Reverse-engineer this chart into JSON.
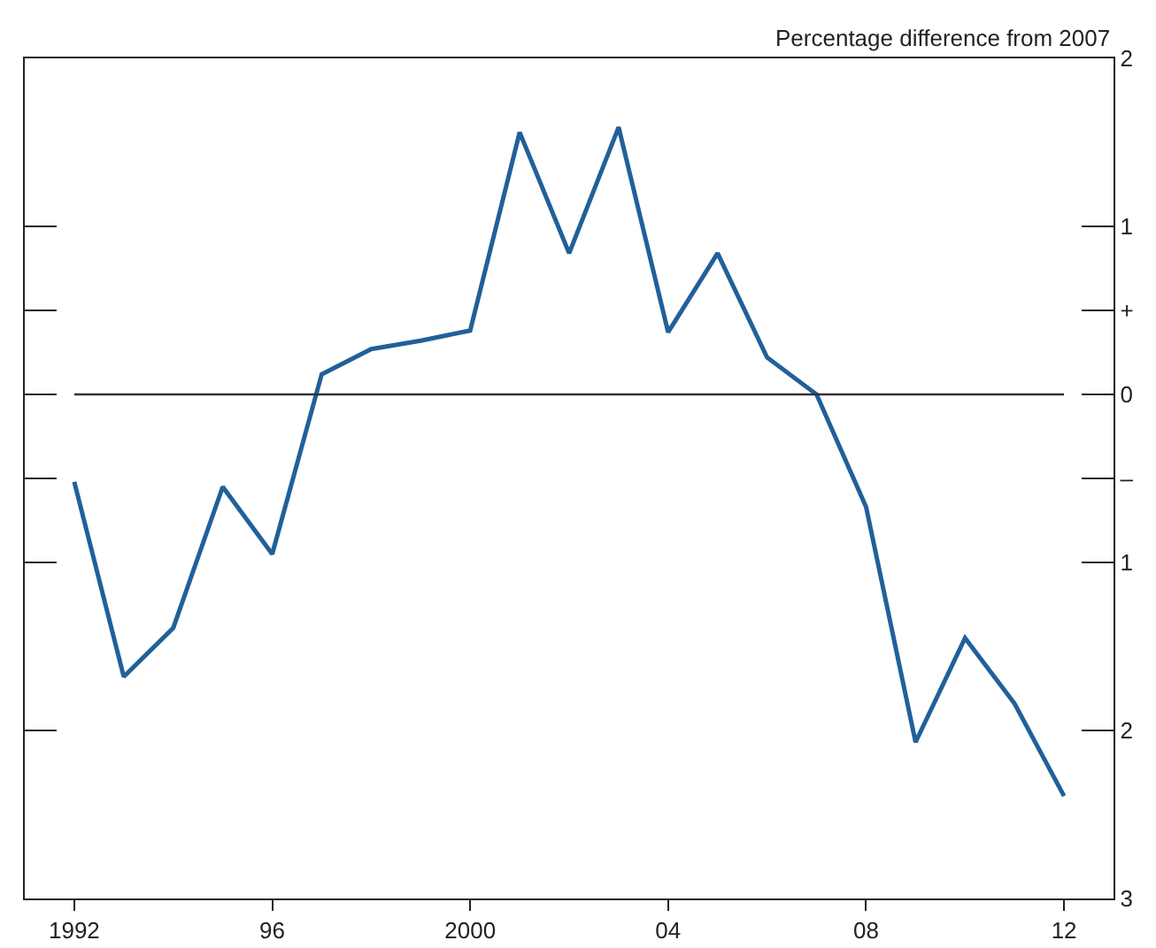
{
  "chart_data": {
    "type": "line",
    "ylabel": "Percentage difference from 2007",
    "x": [
      1992,
      1993,
      1994,
      1995,
      1996,
      1997,
      1998,
      1999,
      2000,
      2001,
      2002,
      2003,
      2004,
      2005,
      2006,
      2007,
      2008,
      2009,
      2010,
      2011,
      2012
    ],
    "series": [
      {
        "color": "#21609a",
        "values": [
          -0.52,
          -1.68,
          -1.39,
          -0.55,
          -0.95,
          0.12,
          0.27,
          0.32,
          0.38,
          1.56,
          0.84,
          1.59,
          0.37,
          0.84,
          0.22,
          0,
          -0.67,
          -2.07,
          -1.45,
          -1.84,
          -2.39
        ]
      }
    ],
    "xlim": [
      1991,
      2013
    ],
    "xticks": [
      1992,
      {
        "value": 1996,
        "label": "96"
      },
      2000,
      {
        "value": 2004,
        "label": "04"
      },
      {
        "value": 2008,
        "label": "08"
      },
      {
        "value": 2012,
        "label": "12"
      }
    ],
    "ylim": [
      -3,
      2
    ],
    "yticks": [
      2,
      1,
      {
        "value": 0.5,
        "label": "+"
      },
      0,
      {
        "value": -0.5,
        "label": "–"
      },
      {
        "value": -1,
        "label": "1"
      },
      {
        "value": -2,
        "label": "2"
      },
      {
        "value": -3,
        "label": "3"
      }
    ],
    "ref_lines": [
      {
        "axis": "y",
        "value": 0,
        "color": "#333333"
      }
    ],
    "grid": false,
    "marker": "none",
    "line_style": "solid"
  }
}
